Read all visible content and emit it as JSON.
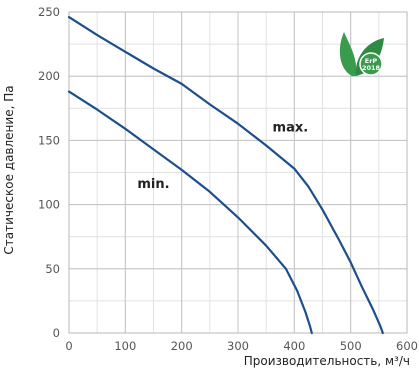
{
  "chart_data": {
    "type": "line",
    "title": "",
    "xlabel": "Производительность, м³/ч",
    "ylabel": "Статическое давление, Па",
    "xlim": [
      0,
      600
    ],
    "ylim": [
      0,
      250
    ],
    "x_ticks": [
      0,
      100,
      200,
      300,
      400,
      500,
      600
    ],
    "y_ticks": [
      0,
      50,
      100,
      150,
      200,
      250
    ],
    "x_minor_step": 50,
    "y_minor_step": 25,
    "grid": true,
    "line_color": "#1c4f8c",
    "series": [
      {
        "name": "max.",
        "points": [
          [
            0,
            246
          ],
          [
            50,
            232
          ],
          [
            100,
            219
          ],
          [
            150,
            206
          ],
          [
            200,
            194
          ],
          [
            250,
            178
          ],
          [
            300,
            163
          ],
          [
            350,
            146
          ],
          [
            400,
            128
          ],
          [
            425,
            114
          ],
          [
            450,
            96
          ],
          [
            480,
            72
          ],
          [
            500,
            55
          ],
          [
            520,
            36
          ],
          [
            540,
            18
          ],
          [
            552,
            6
          ],
          [
            557,
            0
          ]
        ]
      },
      {
        "name": "min.",
        "points": [
          [
            0,
            188
          ],
          [
            50,
            174
          ],
          [
            100,
            159
          ],
          [
            150,
            143
          ],
          [
            200,
            127
          ],
          [
            250,
            110
          ],
          [
            300,
            90
          ],
          [
            350,
            68
          ],
          [
            385,
            50
          ],
          [
            405,
            33
          ],
          [
            420,
            16
          ],
          [
            428,
            5
          ],
          [
            431,
            0
          ]
        ]
      }
    ],
    "annotations": [
      {
        "text": "max.",
        "x": 393,
        "y": 157
      },
      {
        "text": "min.",
        "x": 150,
        "y": 113
      }
    ]
  },
  "badge": {
    "name": "erp-2018-badge",
    "label_top": "ErP",
    "label_bottom": "2018",
    "color": "#3a9b4f"
  }
}
